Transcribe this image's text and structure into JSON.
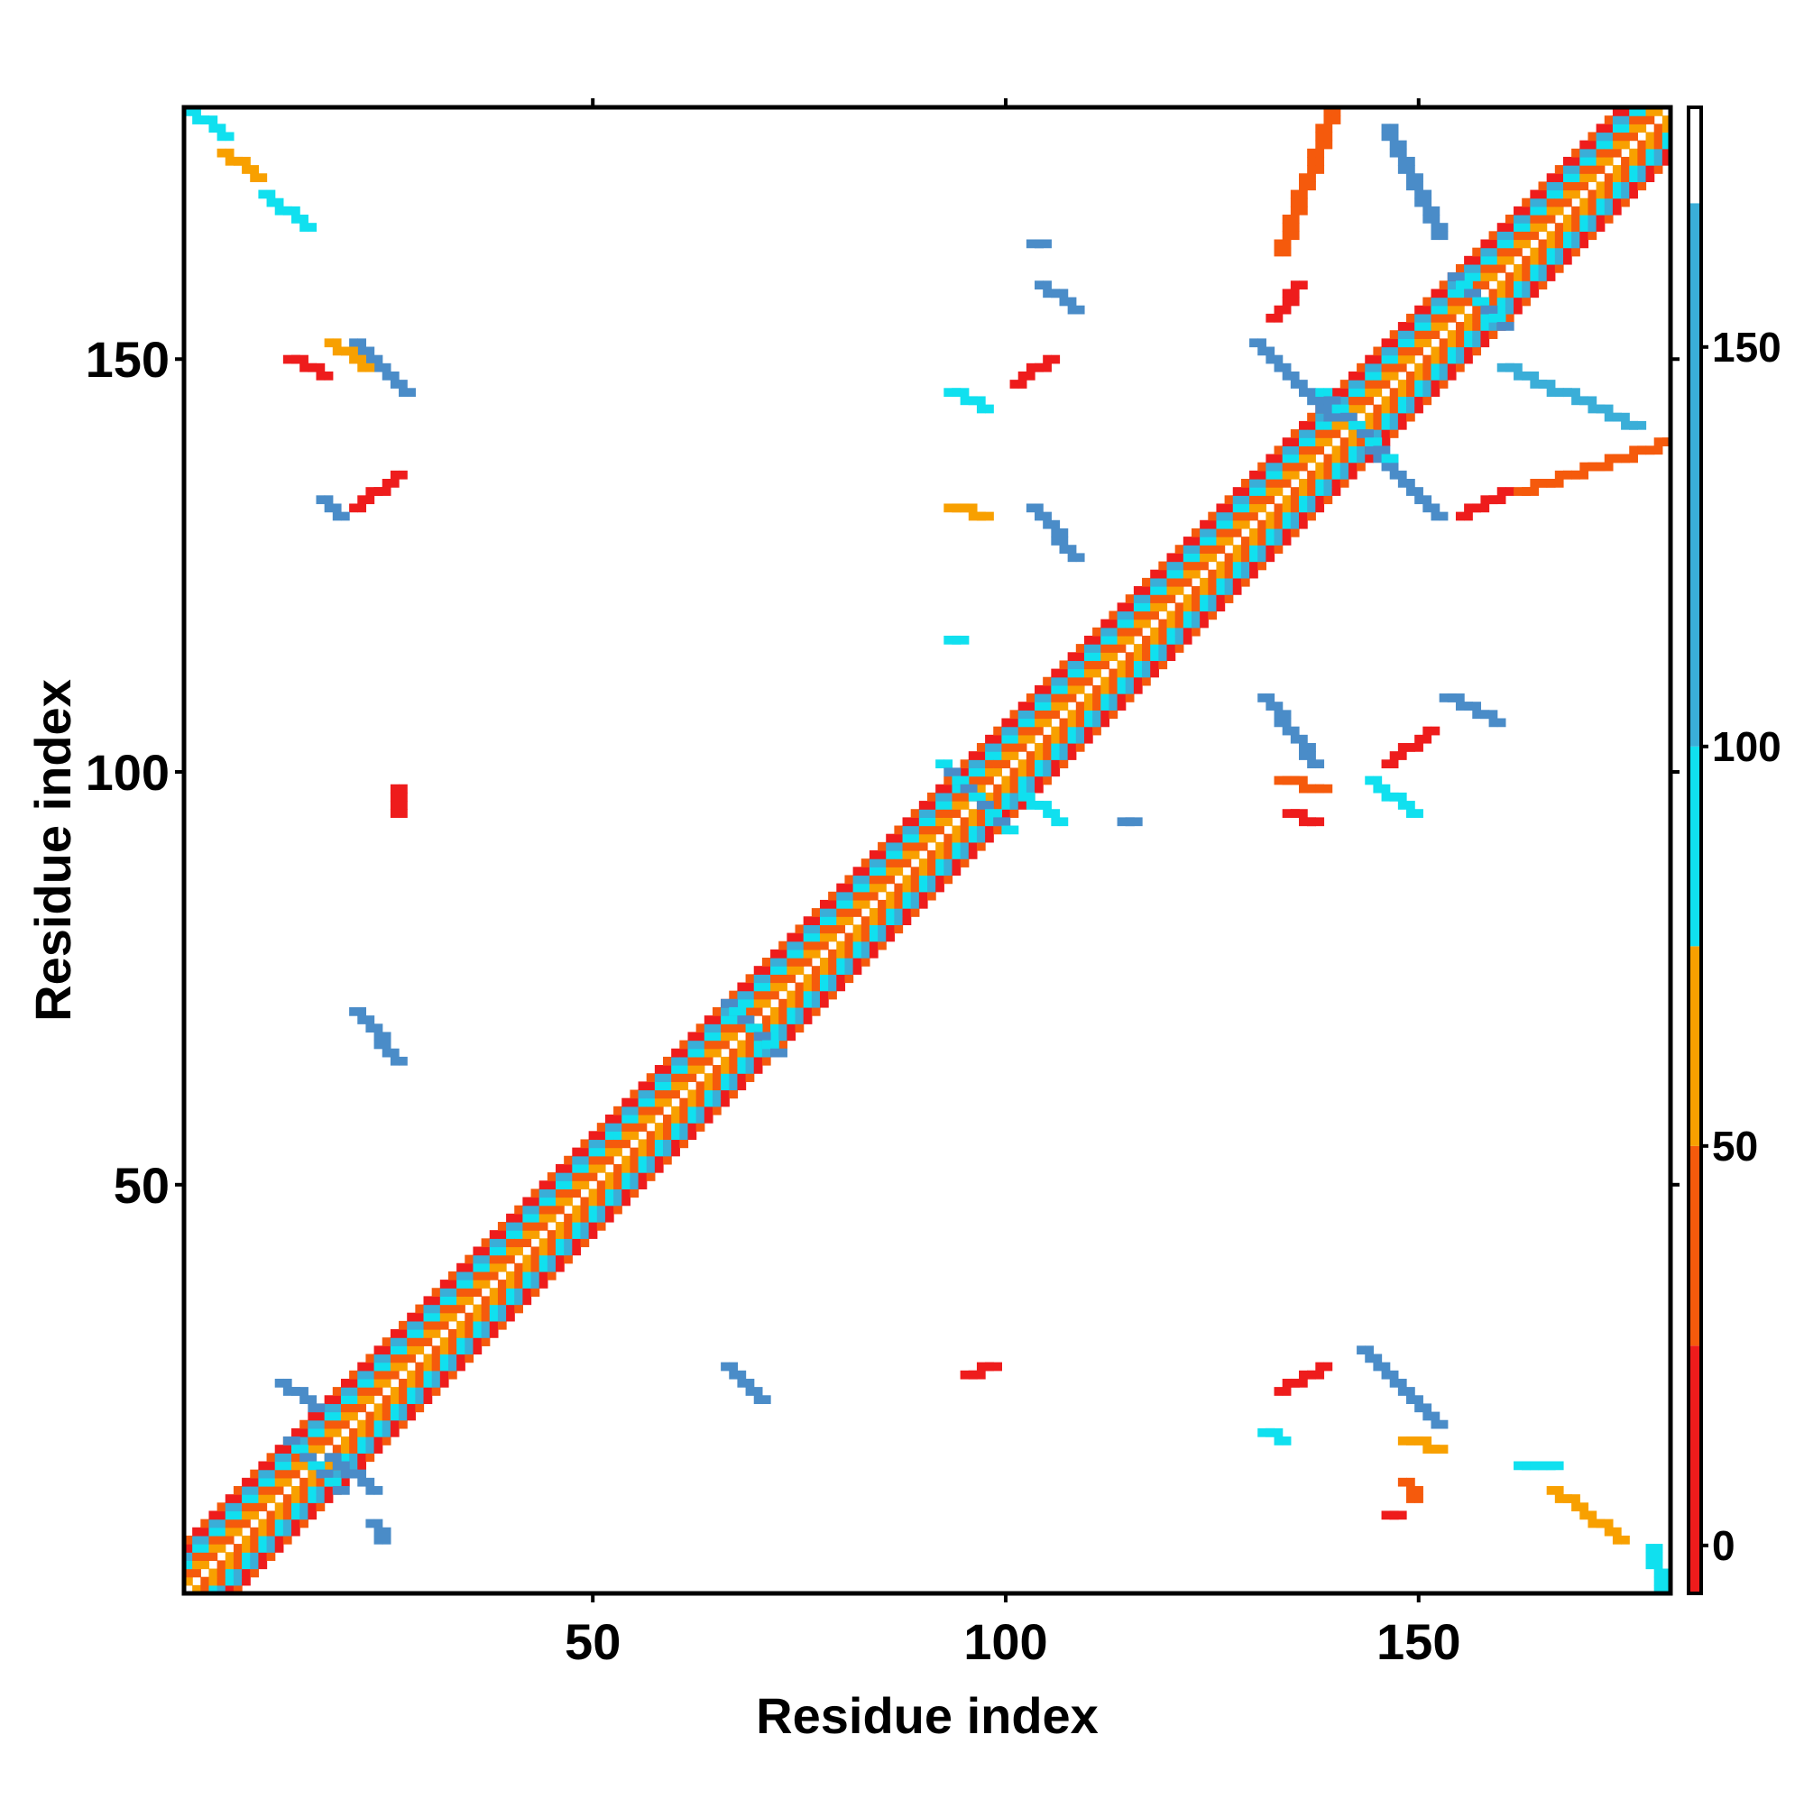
{
  "chart_data": {
    "type": "heatmap",
    "title": "",
    "xlabel": "Residue index",
    "ylabel": "Residue index",
    "xlim": [
      1,
      180
    ],
    "ylim": [
      1,
      180
    ],
    "x_ticks": [
      50,
      100,
      150
    ],
    "y_ticks": [
      50,
      100,
      150
    ],
    "grid": false,
    "legend": "colorbar-right",
    "colorbar": {
      "range": [
        -6,
        180
      ],
      "ticks": [
        0,
        50,
        100,
        150
      ],
      "bands": [
        {
          "from": -6,
          "to": 25,
          "color": "#ee1c1c"
        },
        {
          "from": 25,
          "to": 50,
          "color": "#f55a0c"
        },
        {
          "from": 50,
          "to": 75,
          "color": "#f8a000"
        },
        {
          "from": 75,
          "to": 100,
          "color": "#10e0ef"
        },
        {
          "from": 100,
          "to": 168,
          "color": "#3aaed8"
        },
        {
          "from": 168,
          "to": 180,
          "color": "#ffffff"
        }
      ]
    },
    "palette": {
      "red": "#ee1c1c",
      "orange": "#f55a0c",
      "amber": "#f8a000",
      "cyan": "#10e0ef",
      "steel": "#4a8cc8",
      "blue": "#3aaed8"
    },
    "diagonal": {
      "from": 1,
      "to": 180
    },
    "contact_segments": [
      {
        "x": [
          21,
          27
        ],
        "y": [
          152,
          146
        ],
        "color": "steel"
      },
      {
        "x": [
          1,
          5
        ],
        "y": [
          180,
          177
        ],
        "color": "cyan"
      },
      {
        "x": [
          5,
          9
        ],
        "y": [
          175,
          172
        ],
        "color": "amber"
      },
      {
        "x": [
          10,
          15
        ],
        "y": [
          170,
          166
        ],
        "color": "cyan"
      },
      {
        "x": [
          18,
          22
        ],
        "y": [
          152,
          149
        ],
        "color": "amber"
      },
      {
        "x": [
          13,
          17
        ],
        "y": [
          150,
          148
        ],
        "color": "red"
      },
      {
        "x": [
          21,
          26
        ],
        "y": [
          132,
          136
        ],
        "color": "red"
      },
      {
        "x": [
          17,
          19
        ],
        "y": [
          133,
          131
        ],
        "color": "steel"
      },
      {
        "x": [
          26,
          26
        ],
        "y": [
          98,
          95
        ],
        "color": "red"
      },
      {
        "x": [
          21,
          26
        ],
        "y": [
          71,
          65
        ],
        "color": "steel"
      },
      {
        "x": [
          66,
          70
        ],
        "y": [
          28,
          24
        ],
        "color": "steel"
      },
      {
        "x": [
          95,
          98
        ],
        "y": [
          27,
          28
        ],
        "color": "red"
      },
      {
        "x": [
          12,
          16
        ],
        "y": [
          26,
          23
        ],
        "color": "steel"
      },
      {
        "x": [
          18,
          23
        ],
        "y": [
          17,
          13
        ],
        "color": "steel"
      },
      {
        "x": [
          23,
          24
        ],
        "y": [
          9,
          7
        ],
        "color": "steel"
      },
      {
        "x": [
          103,
          108
        ],
        "y": [
          132,
          126
        ],
        "color": "steel"
      },
      {
        "x": [
          93,
          97
        ],
        "y": [
          132,
          131
        ],
        "color": "amber"
      },
      {
        "x": [
          93,
          97
        ],
        "y": [
          146,
          144
        ],
        "color": "cyan"
      },
      {
        "x": [
          101,
          105
        ],
        "y": [
          147,
          150
        ],
        "color": "red"
      },
      {
        "x": [
          104,
          108
        ],
        "y": [
          159,
          156
        ],
        "color": "steel"
      },
      {
        "x": [
          103,
          104
        ],
        "y": [
          164,
          164
        ],
        "color": "steel"
      },
      {
        "x": [
          93,
          94
        ],
        "y": [
          116,
          116
        ],
        "color": "cyan"
      },
      {
        "x": [
          130,
          139
        ],
        "y": [
          152,
          143
        ],
        "color": "steel"
      },
      {
        "x": [
          144,
          152
        ],
        "y": [
          139,
          131
        ],
        "color": "steel"
      },
      {
        "x": [
          133,
          139
        ],
        "y": [
          163,
          180
        ],
        "color": "orange"
      },
      {
        "x": [
          132,
          135
        ],
        "y": [
          155,
          159
        ],
        "color": "red"
      },
      {
        "x": [
          146,
          152
        ],
        "y": [
          178,
          165
        ],
        "color": "steel"
      },
      {
        "x": [
          155,
          160
        ],
        "y": [
          131,
          134
        ],
        "color": "red"
      },
      {
        "x": [
          162,
          180
        ],
        "y": [
          134,
          140
        ],
        "color": "orange"
      },
      {
        "x": [
          160,
          176
        ],
        "y": [
          149,
          142
        ],
        "color": "blue"
      },
      {
        "x": [
          131,
          137
        ],
        "y": [
          109,
          101
        ],
        "color": "steel"
      },
      {
        "x": [
          133,
          138
        ],
        "y": [
          99,
          98
        ],
        "color": "orange"
      },
      {
        "x": [
          134,
          137
        ],
        "y": [
          95,
          94
        ],
        "color": "red"
      },
      {
        "x": [
          144,
          149
        ],
        "y": [
          99,
          95
        ],
        "color": "cyan"
      },
      {
        "x": [
          146,
          151
        ],
        "y": [
          101,
          105
        ],
        "color": "red"
      },
      {
        "x": [
          153,
          159
        ],
        "y": [
          109,
          106
        ],
        "color": "steel"
      },
      {
        "x": [
          102,
          106
        ],
        "y": [
          97,
          94
        ],
        "color": "cyan"
      },
      {
        "x": [
          114,
          115
        ],
        "y": [
          94,
          94
        ],
        "color": "steel"
      },
      {
        "x": [
          143,
          152
        ],
        "y": [
          30,
          21
        ],
        "color": "steel"
      },
      {
        "x": [
          148,
          152
        ],
        "y": [
          19,
          18
        ],
        "color": "amber"
      },
      {
        "x": [
          133,
          138
        ],
        "y": [
          25,
          28
        ],
        "color": "red"
      },
      {
        "x": [
          131,
          133
        ],
        "y": [
          20,
          19
        ],
        "color": "cyan"
      },
      {
        "x": [
          148,
          149
        ],
        "y": [
          14,
          12
        ],
        "color": "orange"
      },
      {
        "x": [
          146,
          147
        ],
        "y": [
          10,
          10
        ],
        "color": "red"
      },
      {
        "x": [
          162,
          166
        ],
        "y": [
          16,
          16
        ],
        "color": "cyan"
      },
      {
        "x": [
          166,
          174
        ],
        "y": [
          13,
          7
        ],
        "color": "amber"
      },
      {
        "x": [
          178,
          179
        ],
        "y": [
          6,
          1
        ],
        "color": "cyan"
      }
    ],
    "contact_blobs": [
      {
        "x": 16,
        "y": 16,
        "r": 3,
        "colors": [
          "cyan",
          "steel"
        ]
      },
      {
        "x": 69,
        "y": 69,
        "r": 3,
        "colors": [
          "cyan",
          "steel"
        ]
      },
      {
        "x": 96,
        "y": 97,
        "r": 4,
        "colors": [
          "cyan",
          "steel"
        ]
      },
      {
        "x": 142,
        "y": 142,
        "r": 4,
        "colors": [
          "cyan",
          "steel"
        ]
      },
      {
        "x": 157,
        "y": 157,
        "r": 3,
        "colors": [
          "cyan",
          "steel"
        ]
      }
    ]
  }
}
